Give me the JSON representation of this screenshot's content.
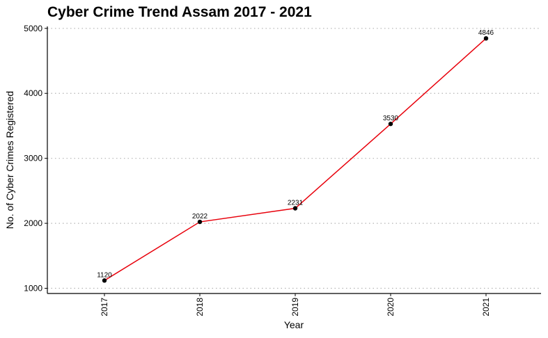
{
  "chart_data": {
    "type": "line",
    "title": "Cyber Crime Trend Assam 2017 - 2021",
    "xlabel": "Year",
    "ylabel": "No. of Cyber Crimes Registered",
    "x": [
      "2017",
      "2018",
      "2019",
      "2020",
      "2021"
    ],
    "y": [
      1120,
      2022,
      2231,
      3530,
      4846
    ],
    "data_labels": [
      "1120",
      "2022",
      "2231",
      "3530",
      "4846"
    ],
    "y_ticks": [
      1000,
      2000,
      3000,
      4000,
      5000
    ],
    "ylim": [
      920,
      5030
    ],
    "grid": "horizontal dotted",
    "legend": "none",
    "colors": {
      "line": "#e8000b",
      "point": "#000000",
      "grid": "#b3b3b3"
    }
  }
}
